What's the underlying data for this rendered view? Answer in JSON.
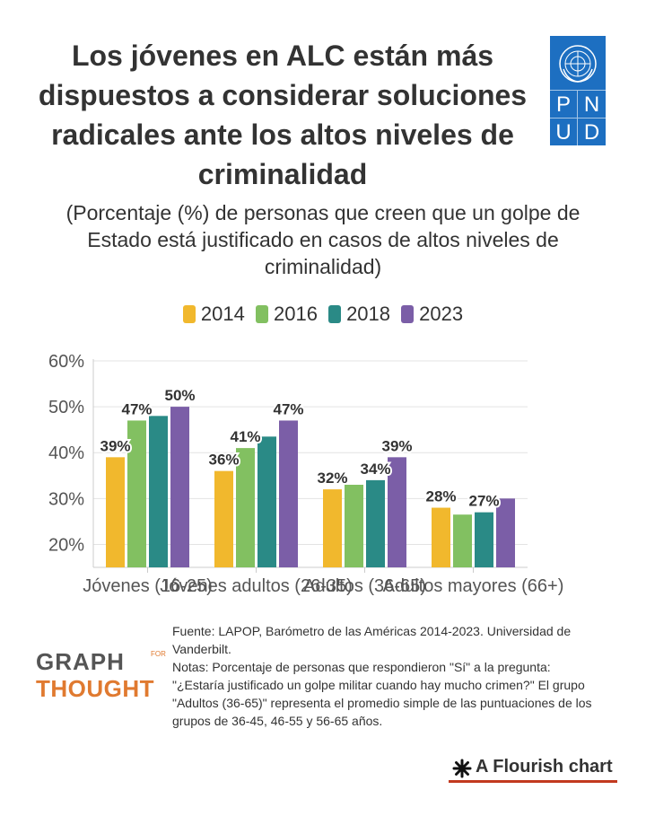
{
  "title": "Los jóvenes en ALC están más dispuestos a considerar soluciones radicales ante los altos niveles de criminalidad",
  "logo": {
    "letters": [
      "P",
      "N",
      "U",
      "D"
    ],
    "color": "#1d6fc1"
  },
  "subtitle": "(Porcentaje (%) de personas que creen que un golpe de Estado está justificado en casos de altos niveles de criminalidad)",
  "legend": [
    {
      "name": "2014",
      "color": "#f1b82d"
    },
    {
      "name": "2016",
      "color": "#82c061"
    },
    {
      "name": "2018",
      "color": "#2a8a86"
    },
    {
      "name": "2023",
      "color": "#7b5ea7"
    }
  ],
  "chart_data": {
    "type": "bar",
    "categories": [
      "Jóvenes (16-25)",
      "Jóvenes adultos (26-35)",
      "Adultos (36-65)",
      "Adultos mayores (66+)"
    ],
    "series": [
      {
        "name": "2014",
        "color": "#f1b82d",
        "values": [
          39,
          36,
          32,
          28
        ],
        "labels": [
          "39%",
          "36%",
          "32%",
          "28%"
        ]
      },
      {
        "name": "2016",
        "color": "#82c061",
        "values": [
          47,
          41,
          33,
          26.5
        ],
        "labels": [
          "47%",
          "41%",
          "",
          ""
        ]
      },
      {
        "name": "2018",
        "color": "#2a8a86",
        "values": [
          48,
          43.5,
          34,
          27
        ],
        "labels": [
          "",
          "",
          "34%",
          "27%"
        ]
      },
      {
        "name": "2023",
        "color": "#7b5ea7",
        "values": [
          50,
          47,
          39,
          30
        ],
        "labels": [
          "50%",
          "47%",
          "39%",
          ""
        ]
      }
    ],
    "yticks": [
      "60%",
      "50%",
      "40%",
      "30%",
      "20%"
    ],
    "ytick_values": [
      60,
      50,
      40,
      30,
      20
    ],
    "ylim": [
      15,
      60
    ],
    "grid": true,
    "legend_position": "top"
  },
  "footer": {
    "source": "Fuente: LAPOP, Barómetro de las Américas 2014-2023. Universidad de Vanderbilt.",
    "notes": "Notas: Porcentaje de personas que respondieron \"Sí\" a la pregunta: \"¿Estaría justificado un golpe militar cuando hay mucho crimen?\" El grupo \"Adultos (36-65)\" representa el promedio simple de las puntuaciones de los grupos de 36-45, 46-55 y 56-65 años."
  },
  "branding": {
    "graph": "GRAPH",
    "for": "FOR",
    "thought": "THOUGHT",
    "flourish": "A Flourish chart"
  }
}
